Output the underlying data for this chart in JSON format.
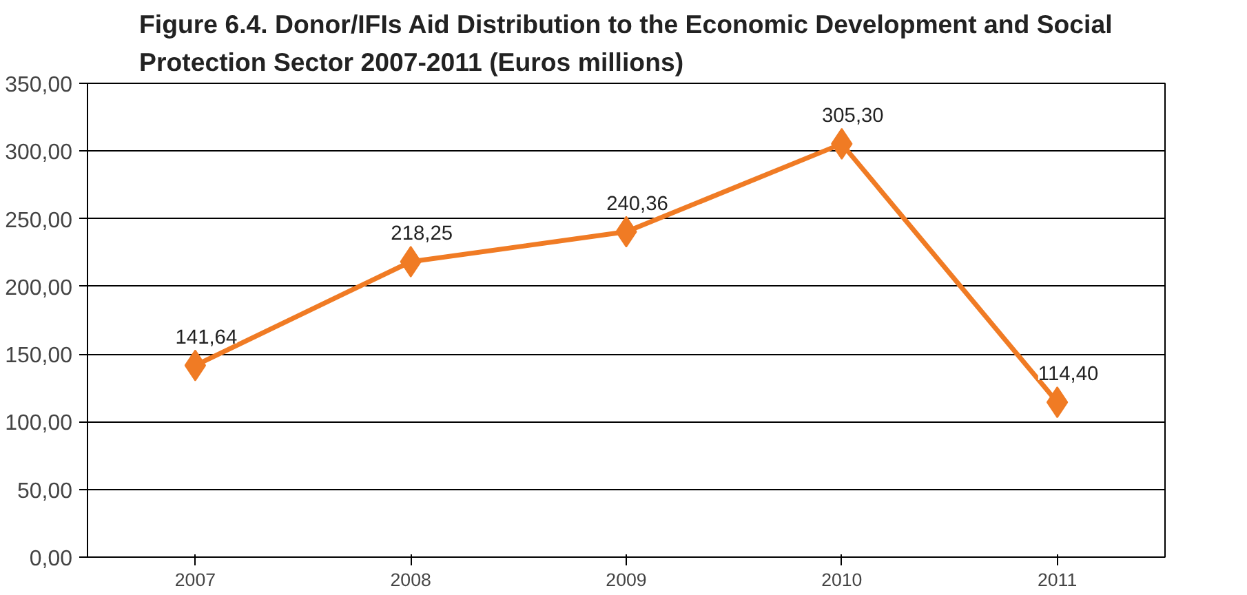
{
  "chart_data": {
    "type": "line",
    "title": "Figure 6.4. Donor/IFIs Aid Distribution to the Economic Development and Social\nProtection Sector 2007-2011 (Euros millions)",
    "categories": [
      "2007",
      "2008",
      "2009",
      "2010",
      "2011"
    ],
    "series": [
      {
        "color": "#f07b24",
        "values": [
          141.64,
          218.25,
          240.36,
          305.3,
          114.4
        ]
      }
    ],
    "value_labels": [
      "141,64",
      "218,25",
      "240,36",
      "305,30",
      "114,40"
    ],
    "ylim": [
      0,
      350
    ],
    "yticks": [
      {
        "value": 0,
        "label": "0,00"
      },
      {
        "value": 50,
        "label": "50,00"
      },
      {
        "value": 100,
        "label": "100,00"
      },
      {
        "value": 150,
        "label": "150,00"
      },
      {
        "value": 200,
        "label": "200,00"
      },
      {
        "value": 250,
        "label": "250,00"
      },
      {
        "value": 300,
        "label": "300,00"
      },
      {
        "value": 350,
        "label": "350,00"
      }
    ],
    "grid": "y",
    "marker": "diamond",
    "line_style": "solid"
  }
}
